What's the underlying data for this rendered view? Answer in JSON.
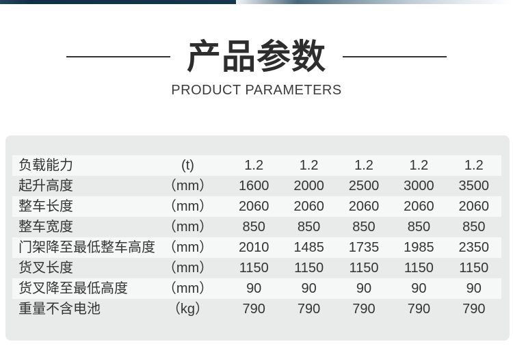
{
  "page": {
    "title": "产品参数",
    "subtitle": "PRODUCT PARAMETERS"
  },
  "colors": {
    "accent_bar_dark": "#123349",
    "card_background": "#e9eaea",
    "row_stripe": "#f6f7f7",
    "text": "#333333",
    "title_text": "#2d2d2d"
  },
  "table": {
    "rows": [
      {
        "label": "负载能力",
        "unit": "(t)",
        "values": [
          "1.2",
          "1.2",
          "1.2",
          "1.2",
          "1.2"
        ]
      },
      {
        "label": "起升高度",
        "unit": "（mm）",
        "values": [
          "1600",
          "2000",
          "2500",
          "3000",
          "3500"
        ]
      },
      {
        "label": "整车长度",
        "unit": "（mm）",
        "values": [
          "2060",
          "2060",
          "2060",
          "2060",
          "2060"
        ]
      },
      {
        "label": "整车宽度",
        "unit": "（mm）",
        "values": [
          "850",
          "850",
          "850",
          "850",
          "850"
        ]
      },
      {
        "label": "门架降至最低整车高度",
        "unit": "（mm）",
        "values": [
          "2010",
          "1485",
          "1735",
          "1985",
          "2350"
        ]
      },
      {
        "label": "货叉长度",
        "unit": "（mm）",
        "values": [
          "1150",
          "1150",
          "1150",
          "1150",
          "1150"
        ]
      },
      {
        "label": "货叉降至最低高度",
        "unit": "（mm）",
        "values": [
          "90",
          "90",
          "90",
          "90",
          "90"
        ]
      },
      {
        "label": "重量不含电池",
        "unit": "（kg）",
        "values": [
          "790",
          "790",
          "790",
          "790",
          "790"
        ]
      }
    ]
  }
}
